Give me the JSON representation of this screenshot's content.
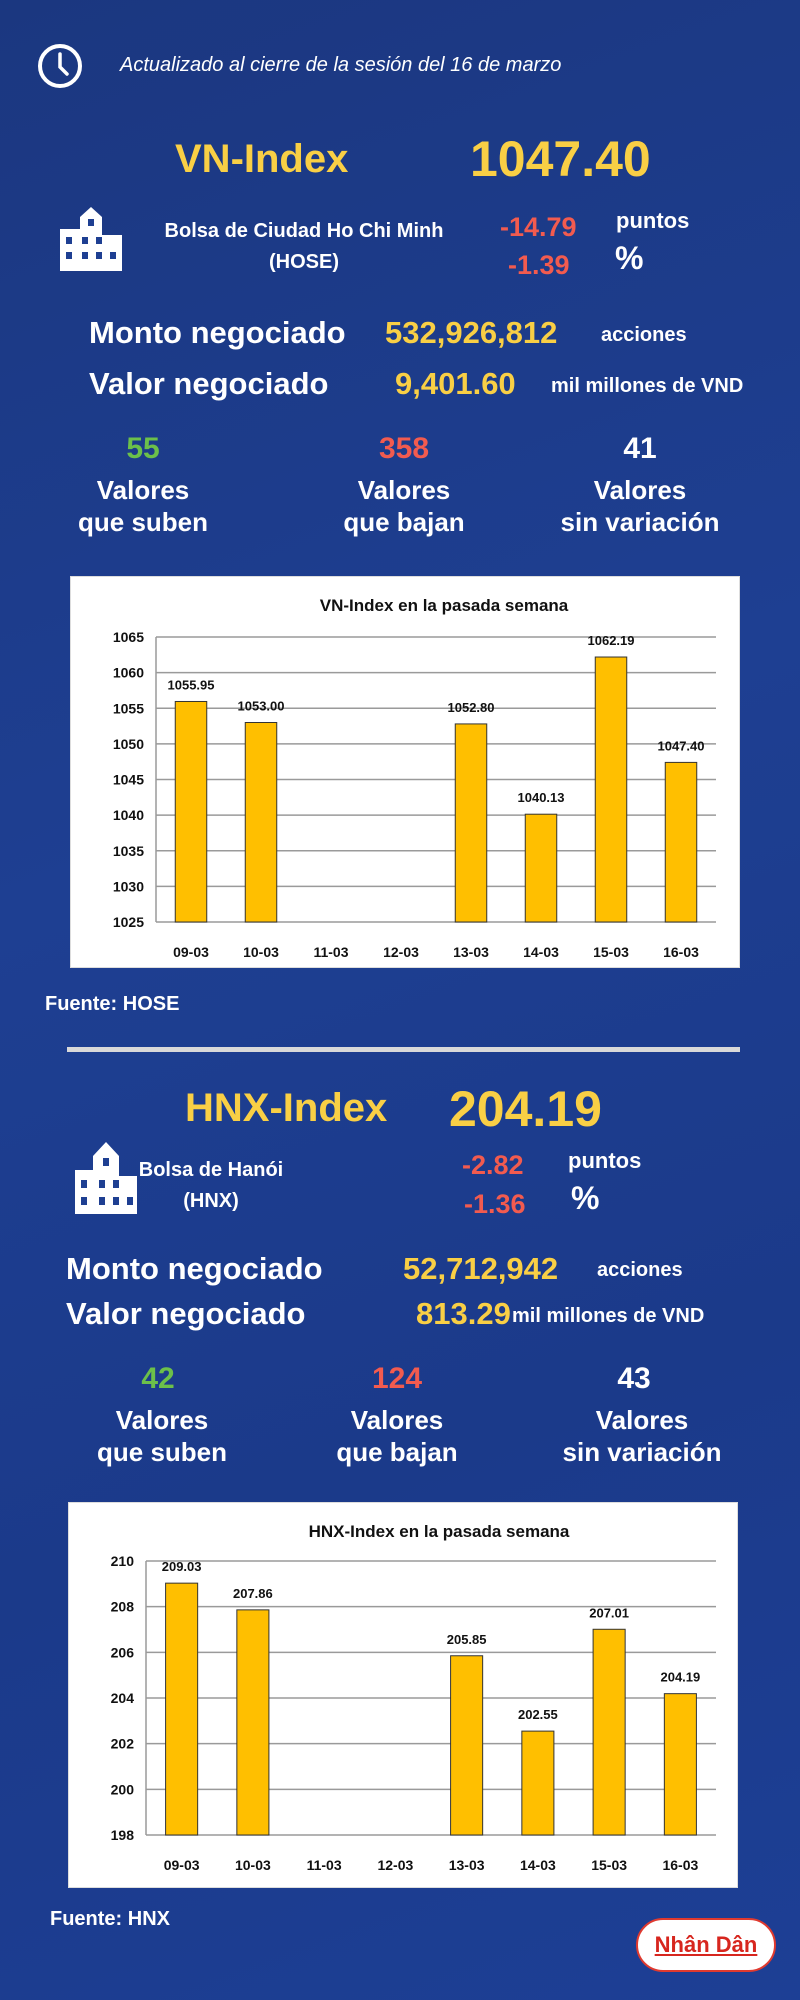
{
  "header": {
    "updated": "Actualizado al cierre de la sesión del 16 de marzo",
    "icon": "clock-icon"
  },
  "colors": {
    "background": "#1e3f92",
    "accent": "#f9cf45",
    "down": "#f25b4f",
    "up": "#6cc04a",
    "bar": "#ffbf00"
  },
  "vn": {
    "name": "VN-Index",
    "value": "1047.40",
    "exchange_line1": "Bolsa de Ciudad Ho Chi Minh",
    "exchange_line2": "(HOSE)",
    "change_points": "-14.79",
    "points_unit": "puntos",
    "change_pct": "-1.39",
    "pct_unit": "%",
    "volume_label": "Monto negociado",
    "volume": "532,926,812",
    "volume_unit": "acciones",
    "value_label": "Valor negociado",
    "traded_value": "9,401.60",
    "value_unit": "mil millones de VND",
    "up_count": "55",
    "down_count": "358",
    "flat_count": "41",
    "up_l1": "Valores",
    "up_l2": "que suben",
    "down_l1": "Valores",
    "down_l2": "que bajan",
    "flat_l1": "Valores",
    "flat_l2": "sin variación",
    "source": "Fuente: HOSE"
  },
  "hnx": {
    "name": "HNX-Index",
    "value": "204.19",
    "exchange_line1": "Bolsa de Hanói",
    "exchange_line2": "(HNX)",
    "change_points": "-2.82",
    "points_unit": "puntos",
    "change_pct": "-1.36",
    "pct_unit": "%",
    "volume_label": "Monto negociado",
    "volume": "52,712,942",
    "volume_unit": "acciones",
    "value_label": "Valor negociado",
    "traded_value": "813.29",
    "value_unit": "mil millones de VND",
    "up_count": "42",
    "down_count": "124",
    "flat_count": "43",
    "up_l1": "Valores",
    "up_l2": "que suben",
    "down_l1": "Valores",
    "down_l2": "que bajan",
    "flat_l1": "Valores",
    "flat_l2": "sin variación",
    "source": "Fuente:  HNX"
  },
  "logo": {
    "text": "Nhân Dân"
  },
  "chart_data": [
    {
      "type": "bar",
      "title": "VN-Index en la pasada semana",
      "categories": [
        "09-03",
        "10-03",
        "11-03",
        "12-03",
        "13-03",
        "14-03",
        "15-03",
        "16-03"
      ],
      "values": [
        1055.95,
        1053.0,
        null,
        null,
        1052.8,
        1040.13,
        1062.19,
        1047.4
      ],
      "labels": [
        "1055.95",
        "1053.00",
        "",
        "",
        "1052.80",
        "1040.13",
        "1062.19",
        "1047.40"
      ],
      "ylim": [
        1025,
        1065
      ],
      "yticks": [
        1025,
        1030,
        1035,
        1040,
        1045,
        1050,
        1055,
        1060,
        1065
      ],
      "grid": true
    },
    {
      "type": "bar",
      "title": "HNX-Index en la pasada semana",
      "categories": [
        "09-03",
        "10-03",
        "11-03",
        "12-03",
        "13-03",
        "14-03",
        "15-03",
        "16-03"
      ],
      "values": [
        209.03,
        207.86,
        null,
        null,
        205.85,
        202.55,
        207.01,
        204.19
      ],
      "labels": [
        "209.03",
        "207.86",
        "",
        "",
        "205.85",
        "202.55",
        "207.01",
        "204.19"
      ],
      "ylim": [
        198,
        210
      ],
      "yticks": [
        198,
        200,
        202,
        204,
        206,
        208,
        210
      ],
      "grid": true
    }
  ]
}
